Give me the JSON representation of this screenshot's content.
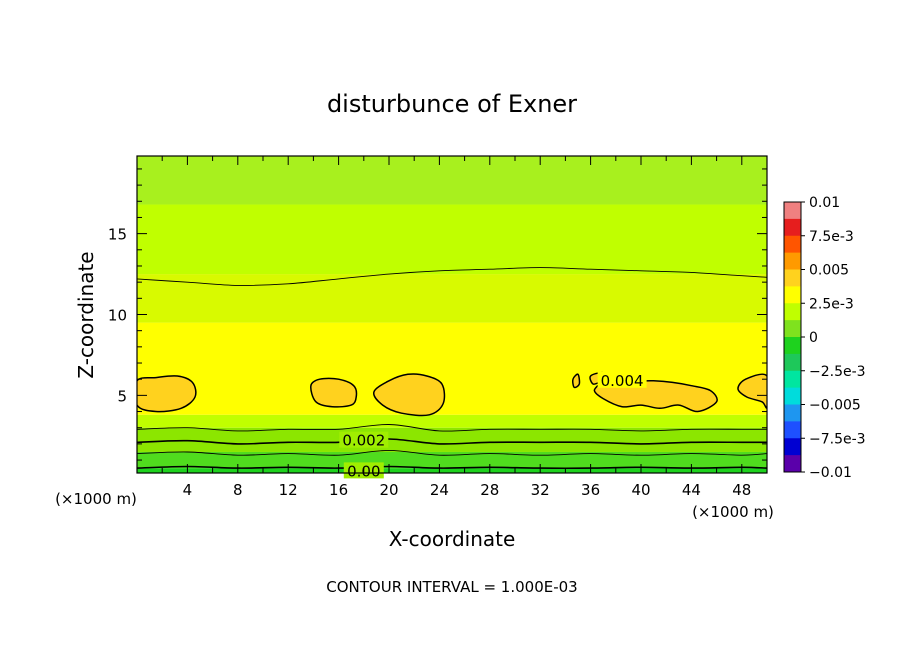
{
  "chart_data": {
    "type": "heatmap",
    "title": "disturbunce of Exner",
    "xlabel": "X-coordinate",
    "ylabel": "Z-coordinate",
    "x_unit": "(×1000 m)",
    "y_unit": "(×1000 m)",
    "xlim": [
      0,
      50
    ],
    "ylim": [
      0.2,
      19.8
    ],
    "x_ticks": [
      4,
      8,
      12,
      16,
      20,
      24,
      28,
      32,
      36,
      40,
      44,
      48
    ],
    "y_ticks": [
      5,
      10,
      15
    ],
    "footer": "CONTOUR INTERVAL = 1.000E-03",
    "colorbar": {
      "labels": [
        "0.01",
        "7.5e-3",
        "0.005",
        "2.5e-3",
        "0",
        "−2.5e-3",
        "−0.005",
        "−7.5e-3",
        "−0.01"
      ],
      "label_values": [
        0.01,
        0.0075,
        0.005,
        0.0025,
        0,
        -0.0025,
        -0.005,
        -0.0075,
        -0.01
      ],
      "step": 0.00125,
      "colors": [
        "#f08080",
        "#e61e1e",
        "#ff5500",
        "#ff9a00",
        "#ffd21e",
        "#ffff00",
        "#c0ff00",
        "#7fe21e",
        "#1ed21e",
        "#1ec85a",
        "#00e6a0",
        "#00dcdc",
        "#1e96f0",
        "#1e50ff",
        "#0000d2",
        "#5a00aa"
      ]
    },
    "background_bands": [
      {
        "z_min": 0.2,
        "z_max": 0.5,
        "color": "#1ed21e"
      },
      {
        "z_min": 0.5,
        "z_max": 1.5,
        "color": "#50dc1e"
      },
      {
        "z_min": 1.5,
        "z_max": 3.0,
        "color": "#8ce600"
      },
      {
        "z_min": 3.0,
        "z_max": 3.8,
        "color": "#c0ff00"
      },
      {
        "z_min": 3.8,
        "z_max": 9.5,
        "color": "#ffff00"
      },
      {
        "z_min": 9.5,
        "z_max": 12.5,
        "color": "#d8fa00"
      },
      {
        "z_min": 12.5,
        "z_max": 16.8,
        "color": "#c0ff00"
      },
      {
        "z_min": 16.8,
        "z_max": 19.8,
        "color": "#a8f01e"
      }
    ],
    "contours": [
      {
        "level": 0.0,
        "label": "0.00",
        "label_x": 18.0,
        "label_z": 0.3,
        "points": [
          [
            0,
            0.5
          ],
          [
            4,
            0.6
          ],
          [
            8,
            0.5
          ],
          [
            12,
            0.55
          ],
          [
            16,
            0.5
          ],
          [
            20,
            0.6
          ],
          [
            24,
            0.5
          ],
          [
            28,
            0.55
          ],
          [
            32,
            0.5
          ],
          [
            36,
            0.5
          ],
          [
            40,
            0.55
          ],
          [
            44,
            0.5
          ],
          [
            48,
            0.55
          ],
          [
            50,
            0.5
          ]
        ]
      },
      {
        "level": 0.001,
        "label": "",
        "label_x": 0,
        "label_z": 0,
        "points": [
          [
            0,
            1.4
          ],
          [
            4,
            1.5
          ],
          [
            8,
            1.3
          ],
          [
            12,
            1.4
          ],
          [
            16,
            1.3
          ],
          [
            20,
            1.6
          ],
          [
            24,
            1.3
          ],
          [
            28,
            1.4
          ],
          [
            32,
            1.3
          ],
          [
            36,
            1.4
          ],
          [
            40,
            1.3
          ],
          [
            44,
            1.4
          ],
          [
            48,
            1.3
          ],
          [
            50,
            1.4
          ]
        ]
      },
      {
        "level": 0.002,
        "label": "0.002",
        "label_x": 18.0,
        "label_z": 2.2,
        "points": [
          [
            0,
            2.1
          ],
          [
            4,
            2.2
          ],
          [
            8,
            2.0
          ],
          [
            12,
            2.1
          ],
          [
            16,
            2.1
          ],
          [
            20,
            2.3
          ],
          [
            24,
            2.0
          ],
          [
            28,
            2.1
          ],
          [
            32,
            2.1
          ],
          [
            36,
            2.1
          ],
          [
            40,
            2.0
          ],
          [
            44,
            2.1
          ],
          [
            48,
            2.1
          ],
          [
            50,
            2.1
          ]
        ]
      },
      {
        "level": 0.003,
        "label": "",
        "label_x": 0,
        "label_z": 0,
        "points": [
          [
            0,
            2.9
          ],
          [
            4,
            3.0
          ],
          [
            8,
            2.8
          ],
          [
            12,
            2.9
          ],
          [
            16,
            2.9
          ],
          [
            20,
            3.2
          ],
          [
            24,
            2.8
          ],
          [
            28,
            2.9
          ],
          [
            32,
            2.9
          ],
          [
            36,
            2.9
          ],
          [
            40,
            2.8
          ],
          [
            44,
            2.9
          ],
          [
            48,
            2.9
          ],
          [
            50,
            2.9
          ]
        ]
      },
      {
        "level": 0.003,
        "label": "",
        "label_x": 0,
        "label_z": 0,
        "points": [
          [
            0,
            12.2
          ],
          [
            4,
            12.0
          ],
          [
            8,
            11.8
          ],
          [
            12,
            11.9
          ],
          [
            16,
            12.2
          ],
          [
            20,
            12.5
          ],
          [
            24,
            12.7
          ],
          [
            28,
            12.8
          ],
          [
            32,
            12.9
          ],
          [
            36,
            12.8
          ],
          [
            40,
            12.7
          ],
          [
            44,
            12.6
          ],
          [
            48,
            12.4
          ],
          [
            50,
            12.3
          ]
        ]
      }
    ],
    "contour_label_004": {
      "text": "0.004",
      "x": 38.5,
      "z": 5.9
    },
    "high_regions": [
      {
        "level": 0.004,
        "points": [
          [
            0,
            4.4
          ],
          [
            1.5,
            4.0
          ],
          [
            3.5,
            4.2
          ],
          [
            4.6,
            4.9
          ],
          [
            4.4,
            5.8
          ],
          [
            3.2,
            6.2
          ],
          [
            1.5,
            6.1
          ],
          [
            0,
            5.9
          ]
        ]
      },
      {
        "level": 0.004,
        "points": [
          [
            13.8,
            5.6
          ],
          [
            14.5,
            6.0
          ],
          [
            16,
            6.0
          ],
          [
            17.2,
            5.6
          ],
          [
            17.4,
            4.9
          ],
          [
            17.0,
            4.4
          ],
          [
            15.5,
            4.3
          ],
          [
            14.2,
            4.6
          ]
        ]
      },
      {
        "level": 0.004,
        "points": [
          [
            18.8,
            5.2
          ],
          [
            20,
            5.9
          ],
          [
            21.5,
            6.3
          ],
          [
            23,
            6.2
          ],
          [
            24.2,
            5.7
          ],
          [
            24.3,
            4.5
          ],
          [
            23.2,
            3.8
          ],
          [
            21,
            3.9
          ],
          [
            19.5,
            4.4
          ]
        ]
      },
      {
        "level": 0.004,
        "points": [
          [
            36,
            6.2
          ],
          [
            37,
            6.4
          ],
          [
            38.2,
            6.1
          ],
          [
            39.5,
            5.9
          ],
          [
            41,
            5.9
          ],
          [
            42.5,
            5.8
          ],
          [
            44,
            5.6
          ],
          [
            45.5,
            5.3
          ],
          [
            46,
            4.6
          ],
          [
            44.5,
            4.0
          ],
          [
            43,
            4.4
          ],
          [
            41.5,
            4.2
          ],
          [
            40,
            4.4
          ],
          [
            38.5,
            4.3
          ],
          [
            37,
            4.8
          ],
          [
            36.3,
            5.3
          ],
          [
            36.8,
            5.8
          ],
          [
            36.2,
            5.7
          ]
        ]
      },
      {
        "level": 0.004,
        "points": [
          [
            34.6,
            6.0
          ],
          [
            35.0,
            6.3
          ],
          [
            35.1,
            5.7
          ],
          [
            34.7,
            5.5
          ]
        ]
      },
      {
        "level": 0.004,
        "points": [
          [
            50,
            6.2
          ],
          [
            48.3,
            6.0
          ],
          [
            47.7,
            5.4
          ],
          [
            48.4,
            4.9
          ],
          [
            49.6,
            4.6
          ],
          [
            50,
            4.3
          ]
        ]
      }
    ]
  }
}
